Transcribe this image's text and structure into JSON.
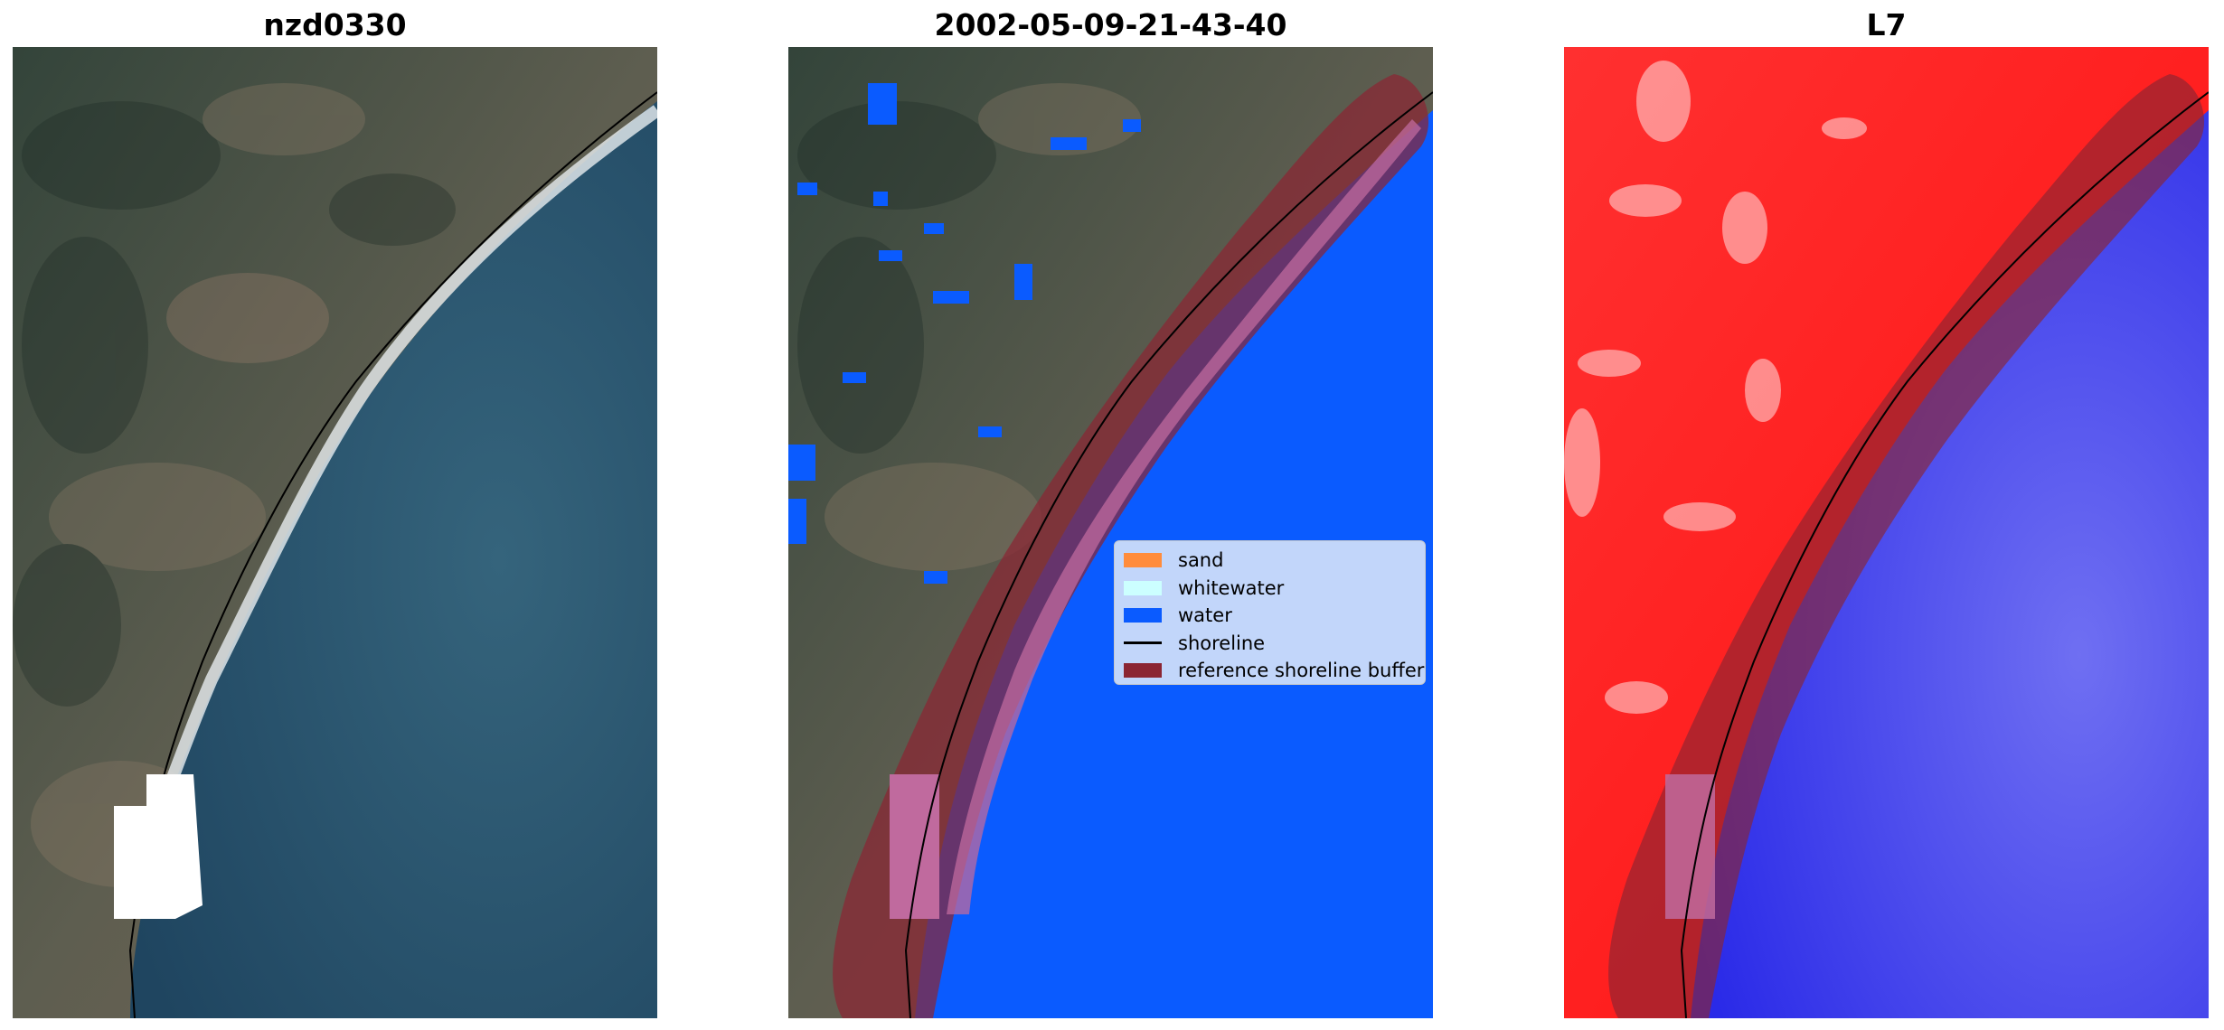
{
  "panels": [
    {
      "title": "nzd0330"
    },
    {
      "title": "2002-05-09-21-43-40"
    },
    {
      "title": "L7"
    }
  ],
  "legend": {
    "items": [
      {
        "label": "sand",
        "color": "#ff8c3c"
      },
      {
        "label": "whitewater",
        "color": "#ccffff"
      },
      {
        "label": "water",
        "color": "#0a5bff"
      },
      {
        "label": "shoreline",
        "color": "#000000"
      },
      {
        "label": "reference shoreline buffer",
        "color": "#8b2533"
      }
    ]
  },
  "colors": {
    "land_dark": "#3a4a3c",
    "land_light": "#7a6b5e",
    "sea": "#2c5670",
    "buffer": "#8b2533",
    "index_land": "#ff1a1a",
    "index_water": "#3535ee"
  }
}
